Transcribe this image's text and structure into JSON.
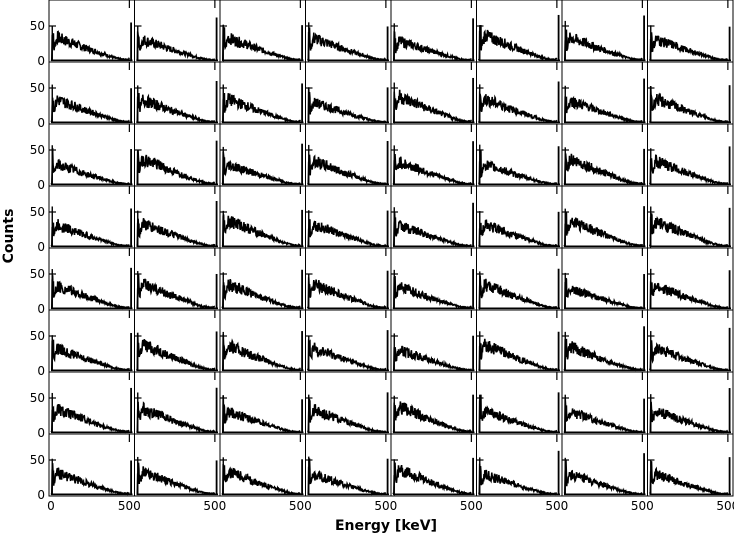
{
  "chart_data": {
    "type": "line",
    "layout": "grid of small-multiple spectra",
    "rows": 8,
    "cols": 8,
    "xlabel": "Energy [keV]",
    "ylabel": "Counts",
    "xlim": [
      0,
      520
    ],
    "ylim": [
      0,
      80
    ],
    "x_ticks": [
      "0",
      "500"
    ],
    "y_ticks": [
      "0",
      "50"
    ],
    "grid": false,
    "legend": "none",
    "line_color": "#000000",
    "series_profile": {
      "x": [
        0,
        20,
        40,
        80,
        120,
        160,
        200,
        240,
        280,
        320,
        360,
        400,
        440,
        480,
        505,
        511,
        517,
        520
      ],
      "y": [
        5,
        20,
        34,
        30,
        27,
        24,
        20,
        17,
        14,
        11,
        8,
        5,
        3,
        2,
        3,
        55,
        3,
        1
      ]
    }
  }
}
